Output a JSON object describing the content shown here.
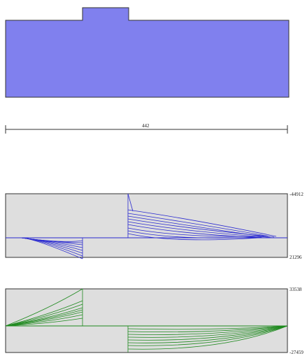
{
  "dimension": {
    "label": "442"
  },
  "colors": {
    "section_fill": "#8080ee",
    "section_stroke": "#333333",
    "panel_fill": "#dedede",
    "panel_stroke": "#333333",
    "blue_series": "#2a2ad0",
    "green_series": "#1f8a1f",
    "dimension_line": "#333333"
  },
  "shear_panel": {
    "top_label": "-44912",
    "bottom_label": "21296"
  },
  "moment_panel": {
    "top_label": "33538",
    "bottom_label": "-27459"
  }
}
